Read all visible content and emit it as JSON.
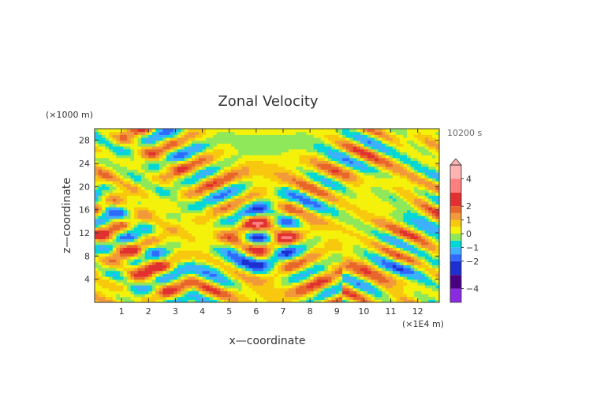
{
  "chart_data": {
    "type": "heatmap",
    "title": "Zonal Velocity",
    "xlabel": "x—coordinate",
    "ylabel": "z—coordinate",
    "x_unit": "(×1E4 m)",
    "y_unit": "(×1000 m)",
    "time_label": "10200 s",
    "xlim": [
      0,
      12.8
    ],
    "ylim": [
      0,
      30
    ],
    "x_ticks": [
      1,
      2,
      3,
      4,
      5,
      6,
      7,
      8,
      9,
      10,
      11,
      12
    ],
    "y_ticks": [
      4,
      8,
      12,
      16,
      20,
      24,
      28
    ],
    "colorbar": {
      "labels": [
        "4",
        "2",
        "1",
        "0",
        "−1",
        "−2",
        "−4"
      ],
      "label_values": [
        4,
        2,
        1,
        0,
        -1,
        -2,
        -4
      ],
      "levels": [
        -5,
        -4,
        -3,
        -2,
        -1.5,
        -1,
        -0.5,
        0,
        0.5,
        1,
        1.5,
        2,
        3,
        4,
        5
      ],
      "colors": [
        "#8a2be2",
        "#4b0082",
        "#1e2fcf",
        "#2f6bff",
        "#3fb0ff",
        "#00d8d8",
        "#8ee85a",
        "#f4f20a",
        "#f7c80d",
        "#f29a3a",
        "#e8662a",
        "#e03030",
        "#ff7f7f",
        "#ffb3b3"
      ],
      "extend": "both"
    }
  }
}
